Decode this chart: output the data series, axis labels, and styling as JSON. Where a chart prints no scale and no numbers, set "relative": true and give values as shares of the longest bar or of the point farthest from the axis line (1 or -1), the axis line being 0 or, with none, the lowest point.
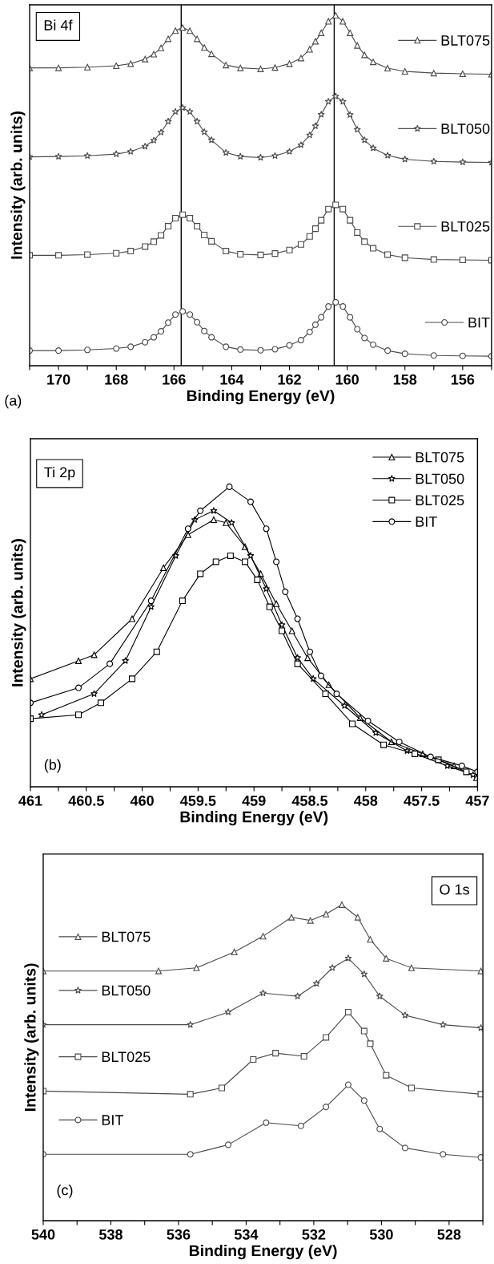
{
  "chart_data": [
    {
      "type": "line",
      "relative": true,
      "xlabel": "Binding Energy (eV)",
      "ylabel": "Intensity (arb. units)",
      "legend": "right",
      "tick_labels": "x",
      "grid": false,
      "annotations": [
        "Bi 4f",
        "(a)"
      ],
      "xlim": [
        171,
        155
      ],
      "xticks": [
        {
          "value": 171,
          "label": null
        },
        170,
        {
          "value": 169,
          "label": null
        },
        168,
        {
          "value": 167,
          "label": null
        },
        166,
        {
          "value": 165,
          "label": null
        },
        164,
        {
          "value": 163,
          "label": null
        },
        162,
        {
          "value": 161,
          "label": null
        },
        160,
        {
          "value": 159,
          "label": null
        },
        158,
        {
          "value": 157,
          "label": null
        },
        156,
        {
          "value": 155,
          "label": null
        }
      ],
      "ref_lines": [
        {
          "axis": "x",
          "value": 165.75,
          "color": "#000000"
        },
        {
          "axis": "x",
          "value": 160.45,
          "color": "#000000"
        }
      ],
      "x": [
        171,
        170,
        169,
        168,
        167.5,
        167,
        166.7,
        166.45,
        166.2,
        165.95,
        165.7,
        165.45,
        165.2,
        164.95,
        164.7,
        164.2,
        163.7,
        163,
        162.5,
        162,
        161.6,
        161.3,
        161.1,
        160.9,
        160.65,
        160.4,
        160.15,
        159.9,
        159.65,
        159.4,
        159.1,
        158.6,
        158,
        157,
        156,
        155
      ],
      "series": [
        {
          "name": "BLT075",
          "color": "#4a4a4a",
          "marker": "triangle",
          "values": [
            0.85,
            0.85,
            0.852,
            0.856,
            0.862,
            0.875,
            0.889,
            0.907,
            0.933,
            0.956,
            0.965,
            0.956,
            0.933,
            0.908,
            0.89,
            0.858,
            0.85,
            0.847,
            0.851,
            0.862,
            0.878,
            0.903,
            0.926,
            0.95,
            0.983,
            1.0,
            0.983,
            0.95,
            0.914,
            0.887,
            0.867,
            0.849,
            0.84,
            0.835,
            0.833,
            0.832
          ]
        },
        {
          "name": "BLT050",
          "color": "#4a4a4a",
          "marker": "star",
          "values": [
            0.596,
            0.597,
            0.599,
            0.604,
            0.611,
            0.626,
            0.643,
            0.666,
            0.697,
            0.725,
            0.736,
            0.725,
            0.697,
            0.667,
            0.644,
            0.608,
            0.597,
            0.594,
            0.599,
            0.611,
            0.63,
            0.658,
            0.684,
            0.717,
            0.754,
            0.769,
            0.754,
            0.716,
            0.674,
            0.644,
            0.621,
            0.6,
            0.589,
            0.583,
            0.581,
            0.58
          ]
        },
        {
          "name": "BLT025",
          "color": "#4a4a4a",
          "marker": "square",
          "values": [
            0.315,
            0.315,
            0.317,
            0.321,
            0.327,
            0.34,
            0.354,
            0.372,
            0.398,
            0.421,
            0.431,
            0.421,
            0.398,
            0.373,
            0.355,
            0.327,
            0.318,
            0.316,
            0.32,
            0.33,
            0.346,
            0.369,
            0.391,
            0.415,
            0.447,
            0.459,
            0.447,
            0.415,
            0.38,
            0.354,
            0.335,
            0.317,
            0.308,
            0.303,
            0.302,
            0.301
          ]
        },
        {
          "name": "BIT",
          "color": "#4a4a4a",
          "marker": "circle",
          "values": [
            0.043,
            0.043,
            0.045,
            0.049,
            0.054,
            0.067,
            0.081,
            0.098,
            0.123,
            0.146,
            0.155,
            0.146,
            0.124,
            0.099,
            0.081,
            0.054,
            0.046,
            0.044,
            0.047,
            0.058,
            0.073,
            0.096,
            0.117,
            0.138,
            0.169,
            0.181,
            0.169,
            0.138,
            0.104,
            0.079,
            0.06,
            0.043,
            0.034,
            0.029,
            0.028,
            0.027
          ]
        }
      ]
    },
    {
      "type": "line",
      "relative": true,
      "xlabel": "Binding Energy (eV)",
      "ylabel": "Intensity (arb. units)",
      "legend": "top right",
      "tick_labels": "x",
      "grid": false,
      "annotations": [
        "Ti 2p",
        "(b)"
      ],
      "xlim": [
        461,
        457
      ],
      "xticks": [
        461,
        {
          "value": 460.75,
          "label": null
        },
        460.5,
        {
          "value": 460.25,
          "label": null
        },
        460,
        {
          "value": 459.75,
          "label": null
        },
        459.5,
        {
          "value": 459.25,
          "label": null
        },
        459,
        {
          "value": 458.75,
          "label": null
        },
        458.5,
        {
          "value": 458.25,
          "label": null
        },
        458,
        {
          "value": 457.75,
          "label": null
        },
        457.5,
        {
          "value": 457.25,
          "label": null
        },
        457
      ],
      "series": [
        {
          "name": "BLT075",
          "color": "#000000",
          "marker": "triangle",
          "x": [
            461,
            460.57,
            460.43,
            460.09,
            459.81,
            459.59,
            459.36,
            459.25,
            459.08,
            458.94,
            458.8,
            458.66,
            458.52,
            458.33,
            458.05,
            457.77,
            457.49,
            457.21,
            457.01
          ],
          "values": [
            0.36,
            0.42,
            0.44,
            0.56,
            0.73,
            0.84,
            0.89,
            0.88,
            0.8,
            0.71,
            0.61,
            0.52,
            0.43,
            0.34,
            0.23,
            0.15,
            0.11,
            0.07,
            0.03
          ]
        },
        {
          "name": "BLT050",
          "color": "#000000",
          "marker": "star",
          "x": [
            460.9,
            460.43,
            460.15,
            459.92,
            459.7,
            459.53,
            459.36,
            459.2,
            459.03,
            458.89,
            458.75,
            458.61,
            458.47,
            458.19,
            457.91,
            457.63,
            457.27,
            457.04
          ],
          "values": [
            0.24,
            0.31,
            0.42,
            0.6,
            0.77,
            0.89,
            0.92,
            0.88,
            0.77,
            0.66,
            0.54,
            0.43,
            0.36,
            0.27,
            0.18,
            0.12,
            0.07,
            0.04
          ]
        },
        {
          "name": "BLT025",
          "color": "#000000",
          "marker": "square",
          "x": [
            461,
            460.57,
            460.37,
            460.09,
            459.87,
            459.64,
            459.48,
            459.34,
            459.21,
            459.08,
            458.97,
            458.86,
            458.75,
            458.61,
            458.36,
            458.12,
            457.84,
            457.56,
            457.35,
            457.1
          ],
          "values": [
            0.227,
            0.24,
            0.28,
            0.36,
            0.45,
            0.62,
            0.71,
            0.75,
            0.77,
            0.75,
            0.69,
            0.6,
            0.52,
            0.41,
            0.31,
            0.21,
            0.14,
            0.11,
            0.09,
            0.05
          ]
        },
        {
          "name": "BIT",
          "color": "#000000",
          "marker": "circle",
          "x": [
            461,
            460.57,
            460.29,
            459.92,
            459.59,
            459.48,
            459.22,
            459.03,
            458.89,
            458.8,
            458.72,
            458.61,
            458.5,
            458.4,
            458.26,
            457.98,
            457.7,
            457.42,
            457.14,
            457
          ],
          "values": [
            0.28,
            0.33,
            0.41,
            0.62,
            0.86,
            0.92,
            1.0,
            0.95,
            0.86,
            0.75,
            0.65,
            0.56,
            0.45,
            0.37,
            0.31,
            0.22,
            0.15,
            0.1,
            0.07,
            0.05
          ]
        }
      ]
    },
    {
      "type": "line",
      "relative": true,
      "xlabel": "Binding Energy (eV)",
      "ylabel": "Intensity (arb. units)",
      "legend": "left",
      "tick_labels": "x",
      "grid": false,
      "annotations": [
        "O 1s",
        "(c)"
      ],
      "xlim": [
        540,
        527
      ],
      "xticks": [
        540,
        {
          "value": 539,
          "label": null
        },
        538,
        {
          "value": 537,
          "label": null
        },
        536,
        {
          "value": 535,
          "label": null
        },
        534,
        {
          "value": 533,
          "label": null
        },
        532,
        {
          "value": 531,
          "label": null
        },
        530,
        {
          "value": 529,
          "label": null
        },
        528,
        {
          "value": 527,
          "label": null
        }
      ],
      "series": [
        {
          "name": "BLT075",
          "color": "#4a4a4a",
          "marker": "triangle",
          "x": [
            540,
            536.59,
            535.47,
            534.35,
            533.5,
            532.66,
            532.1,
            531.64,
            531.17,
            530.7,
            530.33,
            529.86,
            529.11,
            527.06
          ],
          "values": [
            0.79,
            0.79,
            0.8,
            0.85,
            0.9,
            0.96,
            0.95,
            0.97,
            1.0,
            0.96,
            0.89,
            0.83,
            0.8,
            0.79
          ]
        },
        {
          "name": "BLT050",
          "color": "#4a4a4a",
          "marker": "star",
          "x": [
            540,
            535.65,
            534.53,
            533.5,
            532.48,
            531.92,
            531.45,
            530.98,
            530.51,
            530.05,
            529.3,
            528.18,
            527.06
          ],
          "values": [
            0.62,
            0.62,
            0.66,
            0.72,
            0.71,
            0.75,
            0.8,
            0.83,
            0.78,
            0.71,
            0.65,
            0.62,
            0.61
          ]
        },
        {
          "name": "BLT025",
          "color": "#4a4a4a",
          "marker": "square",
          "x": [
            540,
            535.65,
            534.72,
            533.79,
            533.13,
            532.29,
            531.64,
            530.98,
            530.51,
            530.33,
            529.86,
            529.11,
            527.06
          ],
          "values": [
            0.41,
            0.4,
            0.42,
            0.51,
            0.53,
            0.52,
            0.58,
            0.66,
            0.6,
            0.56,
            0.46,
            0.42,
            0.4
          ]
        },
        {
          "name": "BIT",
          "color": "#4a4a4a",
          "marker": "circle",
          "x": [
            540,
            535.65,
            534.53,
            533.41,
            532.38,
            531.64,
            530.98,
            530.51,
            530.05,
            529.3,
            528.18,
            527.06
          ],
          "values": [
            0.21,
            0.21,
            0.24,
            0.31,
            0.3,
            0.36,
            0.43,
            0.38,
            0.29,
            0.23,
            0.21,
            0.2
          ]
        }
      ]
    }
  ]
}
